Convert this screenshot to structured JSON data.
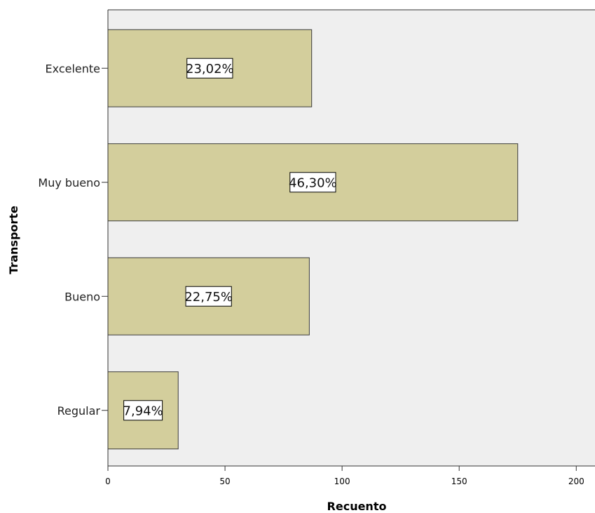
{
  "chart_data": {
    "type": "bar",
    "orientation": "horizontal",
    "title": "",
    "xlabel": "Recuento",
    "ylabel": "Transporte",
    "categories": [
      "Excelente",
      "Muy bueno",
      "Bueno",
      "Regular"
    ],
    "values": [
      87,
      175,
      86,
      30
    ],
    "data_labels": [
      "23,02%",
      "46,30%",
      "22,75%",
      "7,94%"
    ],
    "xlim": [
      0,
      208
    ],
    "x_ticks": [
      0,
      50,
      100,
      150,
      200
    ],
    "x_tick_labels": [
      "0",
      "50",
      "100",
      "150",
      "200"
    ],
    "grid": false,
    "legend": "none"
  },
  "colors": {
    "plot_background": "#efefef",
    "bar_fill": "#d3ce9c",
    "bar_stroke": "#3a3a3a",
    "axis": "#333333",
    "label_box_fill": "#ffffff"
  }
}
